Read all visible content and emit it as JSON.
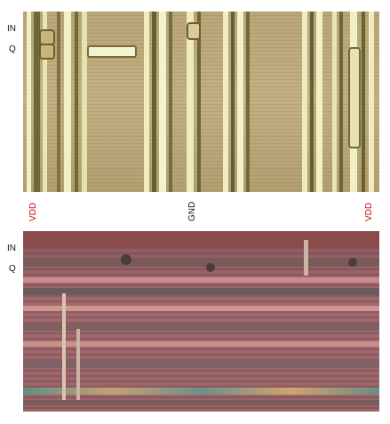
{
  "top_panel": {
    "labels": {
      "in": "IN",
      "q": "Q"
    },
    "rail_labels": {
      "vdd_left": "VDD",
      "gnd": "GND",
      "vdd_right": "VDD"
    },
    "colors": {
      "vdd": "#cc0000",
      "gnd": "#111111"
    }
  },
  "bottom_panel": {
    "labels": {
      "in": "IN",
      "q": "Q"
    }
  }
}
